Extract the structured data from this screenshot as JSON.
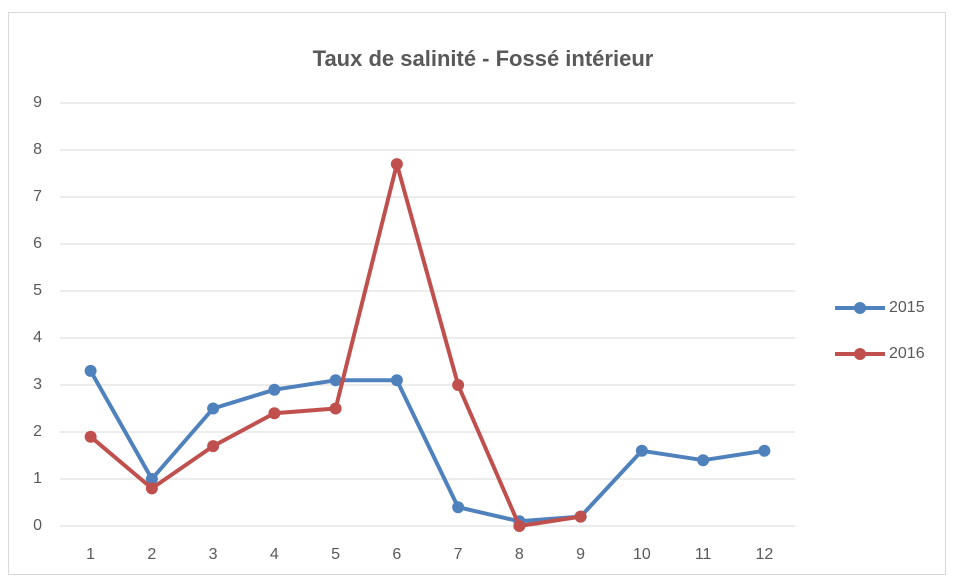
{
  "chart_data": {
    "type": "line",
    "title": "Taux de salinité - Fossé intérieur",
    "categories": [
      1,
      2,
      3,
      4,
      5,
      6,
      7,
      8,
      9,
      10,
      11,
      12
    ],
    "series": [
      {
        "name": "2015",
        "color": "#4f81bd",
        "values": [
          3.3,
          1.0,
          2.5,
          2.9,
          3.1,
          3.1,
          0.4,
          0.1,
          0.2,
          1.6,
          1.4,
          1.6
        ]
      },
      {
        "name": "2016",
        "color": "#c0504d",
        "values": [
          1.9,
          0.8,
          1.7,
          2.4,
          2.5,
          7.7,
          3.0,
          0.0,
          0.2,
          null,
          null,
          null
        ]
      }
    ],
    "ylim": [
      0,
      9
    ],
    "yticks": [
      0,
      1,
      2,
      3,
      4,
      5,
      6,
      7,
      8,
      9
    ],
    "grid": true,
    "legend": "right"
  }
}
